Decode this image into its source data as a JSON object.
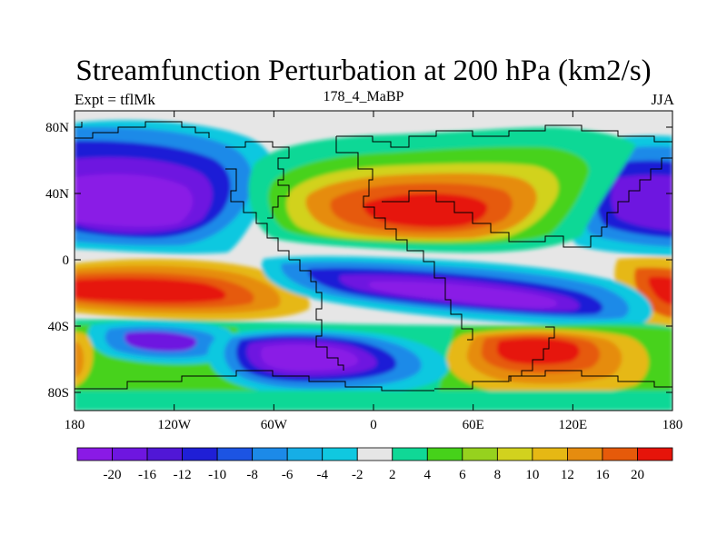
{
  "title": "Streamfunction Perturbation at 200 hPa (km2/s)",
  "subtitle_left": "Expt = tflMk",
  "subtitle_center": "178_4_MaBP",
  "subtitle_right": "JJA",
  "lat_ticks": [
    "80N",
    "40N",
    "0",
    "40S",
    "80S"
  ],
  "lon_ticks": [
    "180",
    "120W",
    "60W",
    "0",
    "60E",
    "120E",
    "180"
  ],
  "colorbar": {
    "labels": [
      "-20",
      "-16",
      "-12",
      "-10",
      "-8",
      "-6",
      "-4",
      "-2",
      "2",
      "4",
      "6",
      "8",
      "10",
      "12",
      "16",
      "20"
    ],
    "colors": [
      "#8a1ae6",
      "#6e16e0",
      "#5017d6",
      "#1f1fd6",
      "#1c54e3",
      "#1c8ae8",
      "#16aee6",
      "#10c8e0",
      "#e6e6e6",
      "#10d896",
      "#46d21a",
      "#96d21e",
      "#d2d21e",
      "#e6b814",
      "#e68c0f",
      "#e65a0a",
      "#e6140a"
    ]
  },
  "colors": {
    "land_outline": "#000000",
    "ocean_neutral": "#e6e6e6"
  }
}
